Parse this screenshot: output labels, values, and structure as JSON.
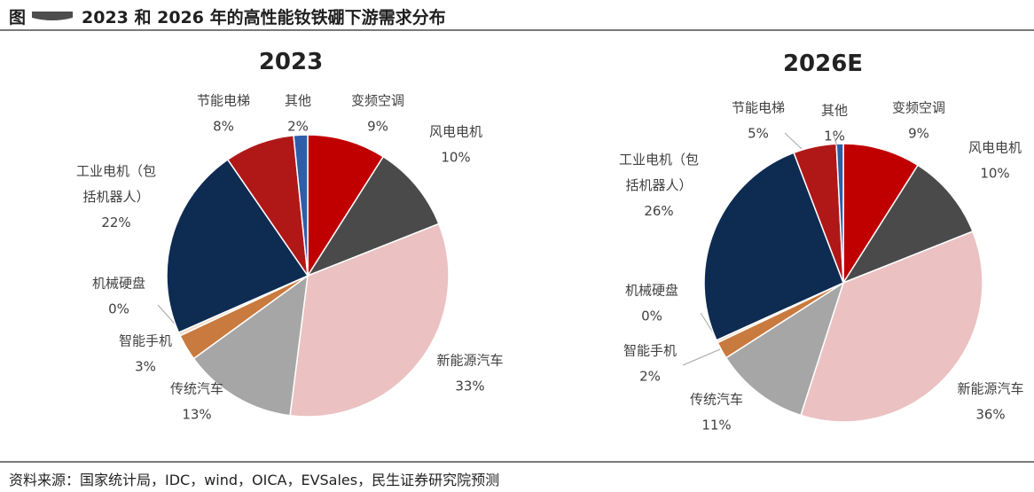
{
  "header": {
    "figure_prefix": "图",
    "title": "2023 和 2026 年的高性能钕铁硼下游需求分布"
  },
  "footer": {
    "source": "资料来源：国家统计局，IDC，wind，OICA，EVSales，民生证券研究院预测"
  },
  "colors": {
    "空调": "#c00000",
    "风电": "#4a4a4a",
    "新能源汽车": "#ebc1c1",
    "传统汽车": "#a6a6a6",
    "智能手机": "#c97a3f",
    "机械硬盘": "#f2dcc8",
    "工业电机": "#0e2b52",
    "电梯": "#b01818",
    "其他": "#2e5ea8",
    "leader": "#a6a6a6",
    "rule": "#7a7a7a"
  },
  "chart_data": [
    {
      "type": "pie",
      "title": "2023",
      "slices": [
        {
          "name": "变频空调",
          "lines": [
            "变频空调"
          ],
          "value_text": "9%",
          "value": 9,
          "color": "#c00000"
        },
        {
          "name": "风电电机",
          "lines": [
            "风电电机"
          ],
          "value_text": "10%",
          "value": 10,
          "color": "#4a4a4a"
        },
        {
          "name": "新能源汽车",
          "lines": [
            "新能源汽车"
          ],
          "value_text": "33%",
          "value": 33,
          "color": "#ebc1c1"
        },
        {
          "name": "传统汽车",
          "lines": [
            "传统汽车"
          ],
          "value_text": "13%",
          "value": 13,
          "color": "#a6a6a6"
        },
        {
          "name": "智能手机",
          "lines": [
            "智能手机"
          ],
          "value_text": "3%",
          "value": 3,
          "color": "#c97a3f"
        },
        {
          "name": "机械硬盘",
          "lines": [
            "机械硬盘"
          ],
          "value_text": "0%",
          "value": 0.4,
          "color": "#f2dcc8"
        },
        {
          "name": "工业电机（包括机器人）",
          "lines": [
            "工业电机（包",
            "括机器人）"
          ],
          "value_text": "22%",
          "value": 22,
          "color": "#0e2b52"
        },
        {
          "name": "节能电梯",
          "lines": [
            "节能电梯"
          ],
          "value_text": "8%",
          "value": 8,
          "color": "#b01818"
        },
        {
          "name": "其他",
          "lines": [
            "其他"
          ],
          "value_text": "2%",
          "value": 1.6,
          "color": "#2e5ea8"
        }
      ]
    },
    {
      "type": "pie",
      "title": "2026E",
      "slices": [
        {
          "name": "变频空调",
          "lines": [
            "变频空调"
          ],
          "value_text": "9%",
          "value": 9,
          "color": "#c00000"
        },
        {
          "name": "风电电机",
          "lines": [
            "风电电机"
          ],
          "value_text": "10%",
          "value": 10,
          "color": "#4a4a4a"
        },
        {
          "name": "新能源汽车",
          "lines": [
            "新能源汽车"
          ],
          "value_text": "36%",
          "value": 36,
          "color": "#ebc1c1"
        },
        {
          "name": "传统汽车",
          "lines": [
            "传统汽车"
          ],
          "value_text": "11%",
          "value": 11,
          "color": "#a6a6a6"
        },
        {
          "name": "智能手机",
          "lines": [
            "智能手机"
          ],
          "value_text": "2%",
          "value": 2,
          "color": "#c97a3f"
        },
        {
          "name": "机械硬盘",
          "lines": [
            "机械硬盘"
          ],
          "value_text": "0%",
          "value": 0.3,
          "color": "#f2dcc8"
        },
        {
          "name": "工业电机（包括机器人）",
          "lines": [
            "工业电机（包",
            "括机器人）"
          ],
          "value_text": "26%",
          "value": 26,
          "color": "#0e2b52"
        },
        {
          "name": "节能电梯",
          "lines": [
            "节能电梯"
          ],
          "value_text": "5%",
          "value": 5,
          "color": "#b01818"
        },
        {
          "name": "其他",
          "lines": [
            "其他"
          ],
          "value_text": "1%",
          "value": 0.8,
          "color": "#2e5ea8"
        }
      ]
    }
  ]
}
